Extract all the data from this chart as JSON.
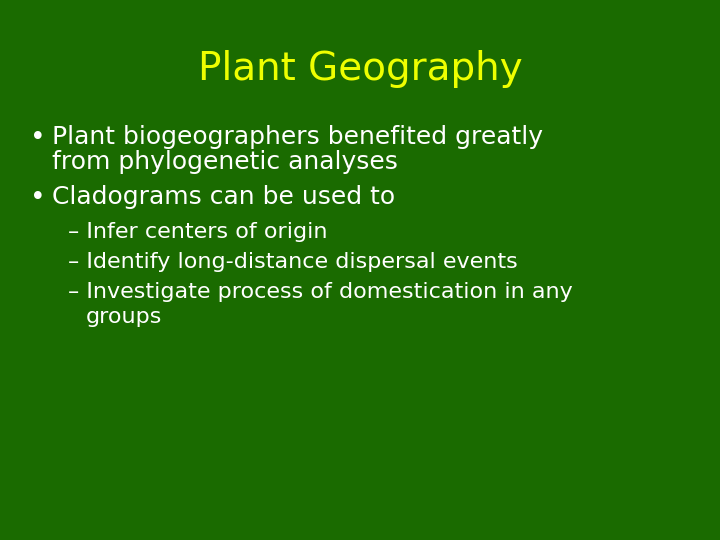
{
  "title": "Plant Geography",
  "title_color": "#EEFF00",
  "title_fontsize": 28,
  "background_color": "#1a6b00",
  "bullet_color": "#FFFFFF",
  "bullet_fontsize": 18,
  "sub_bullet_fontsize": 16,
  "bullet1_line1": "Plant biogeographers benefited greatly",
  "bullet1_line2": "from phylogenetic analyses",
  "bullet2": "Cladograms can be used to",
  "sub1": "– Infer centers of origin",
  "sub2": "– Identify long-distance dispersal events",
  "sub3_line1": "– Investigate process of domestication in any",
  "sub3_line2": "   groups"
}
